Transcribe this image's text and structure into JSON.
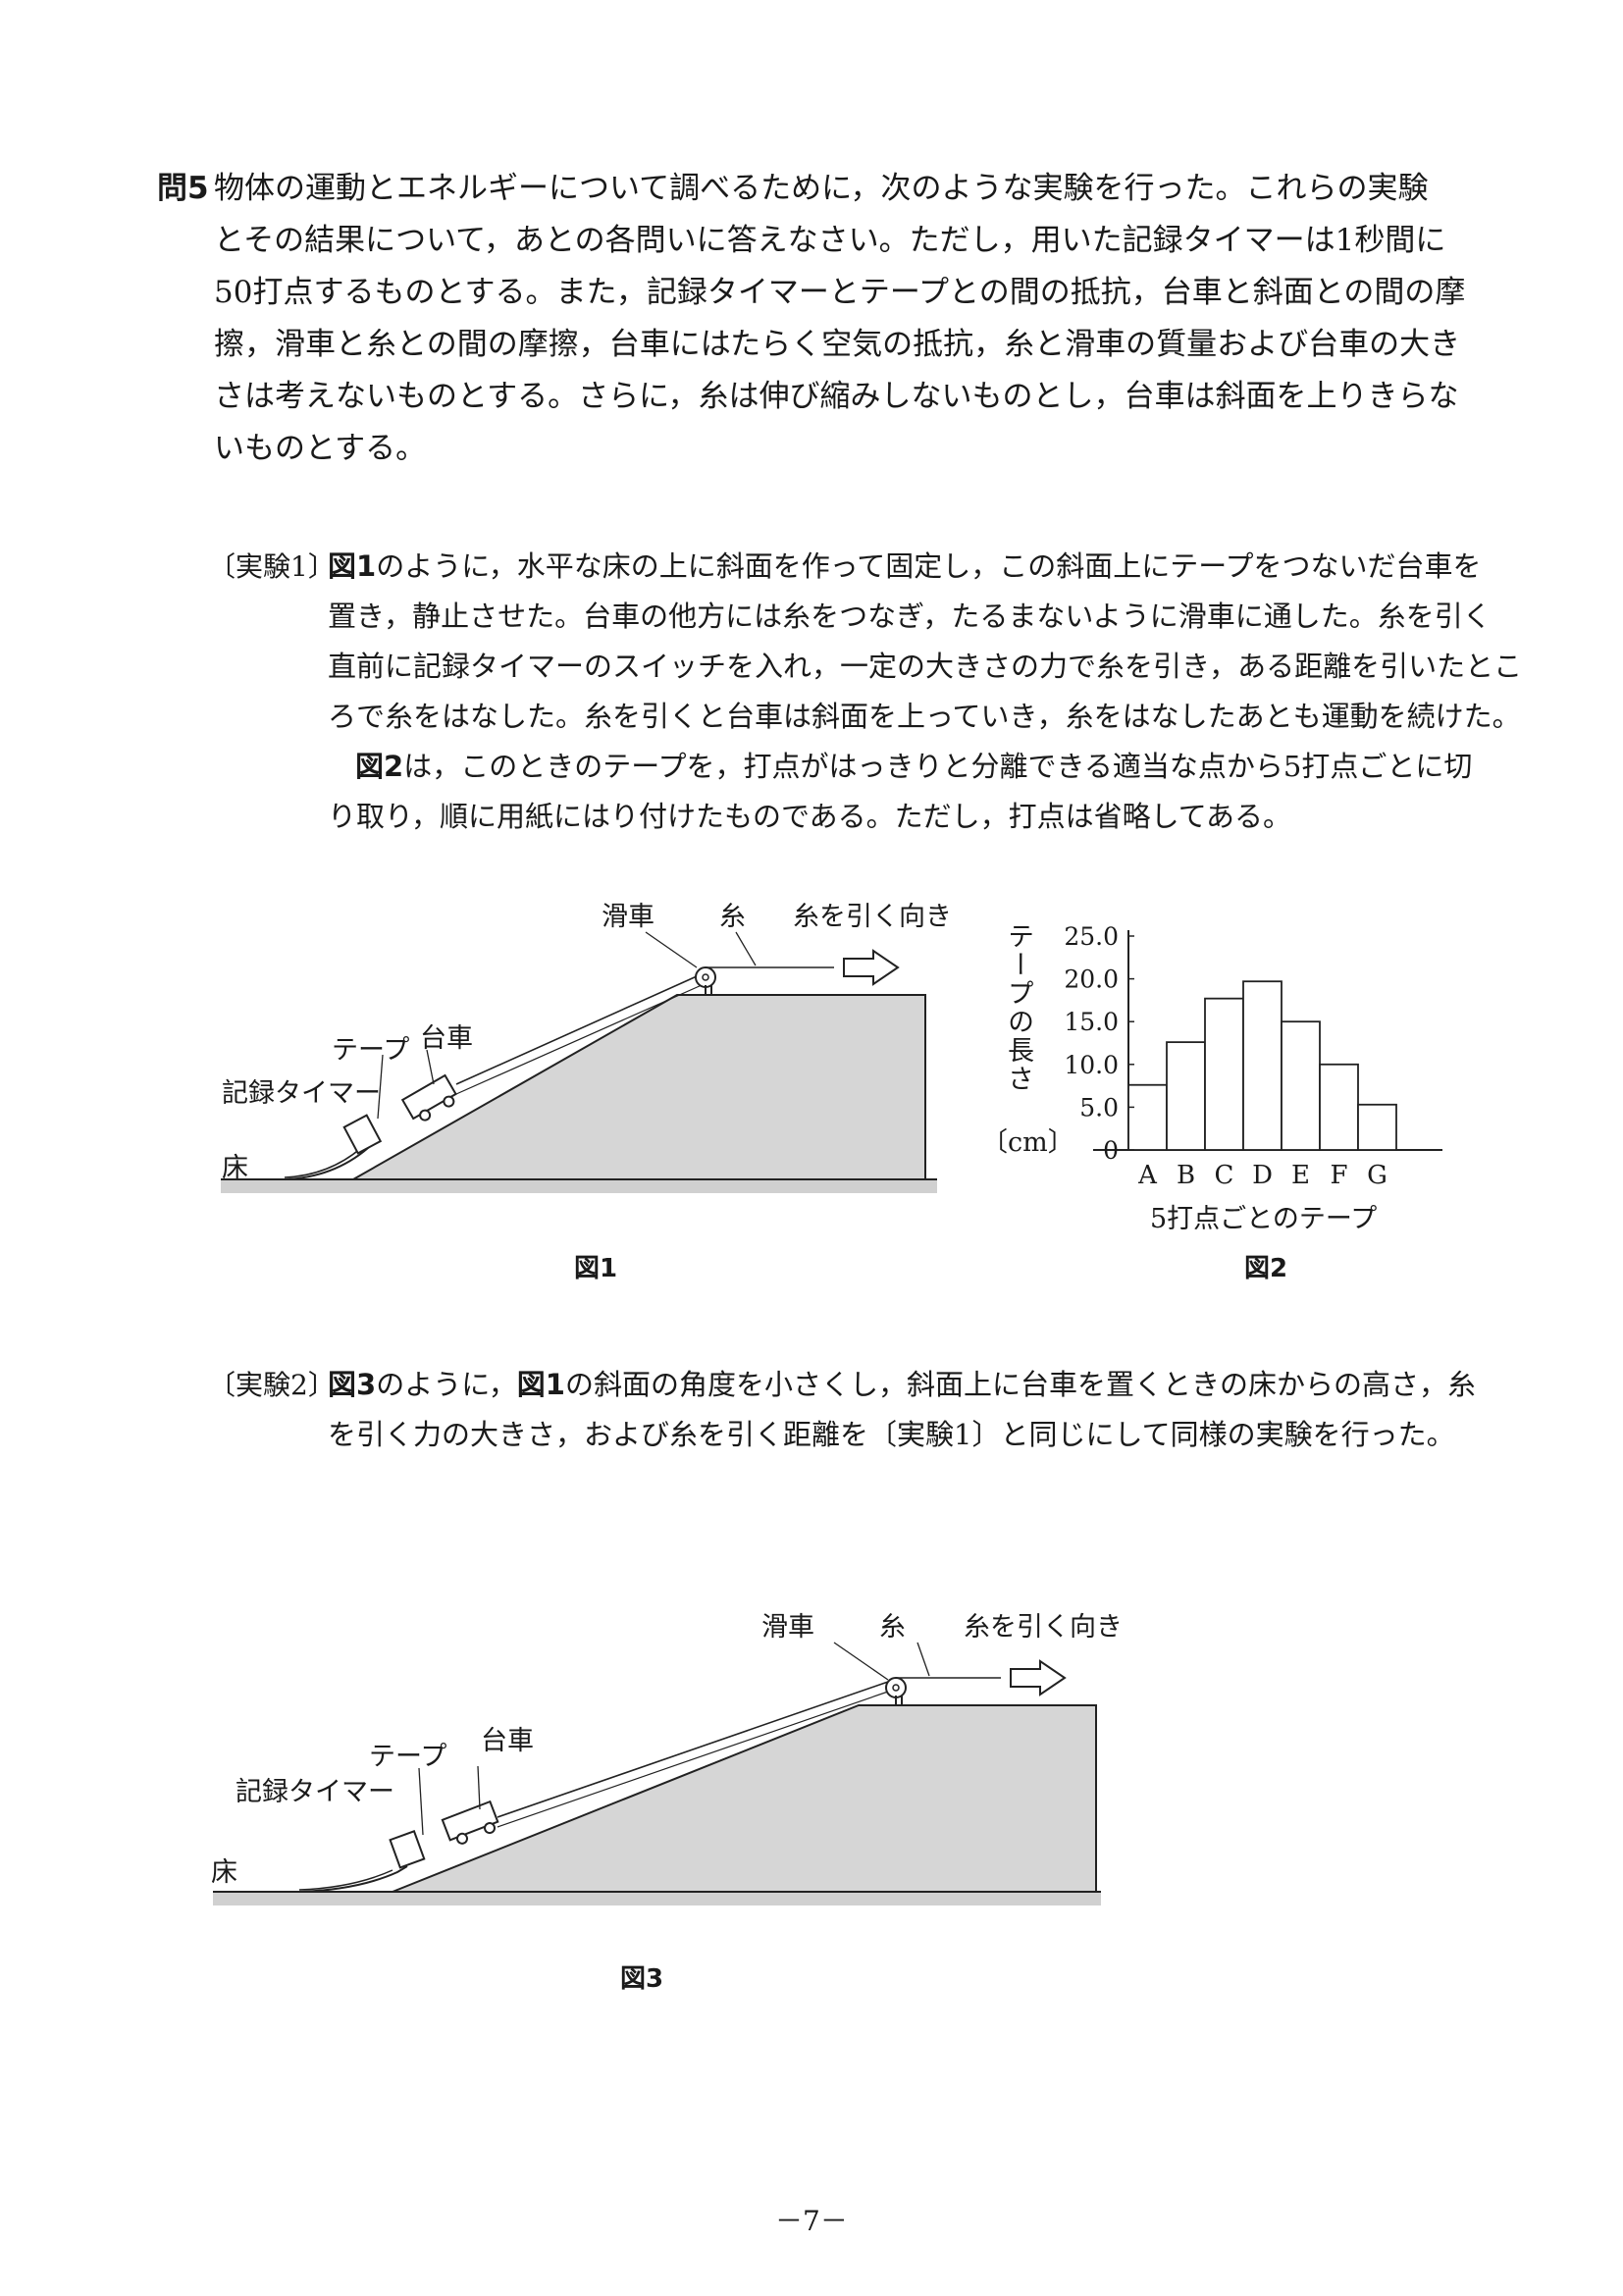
{
  "question": {
    "number": "問5",
    "lines": [
      "物体の運動とエネルギーについて調べるために，次のような実験を行った。これらの実験",
      "とその結果について，あとの各問いに答えなさい。ただし，用いた記録タイマーは1秒間に",
      "50打点するものとする。また，記録タイマーとテープとの間の抵抗，台車と斜面との間の摩",
      "擦，滑車と糸との間の摩擦，台車にはたらく空気の抵抗，糸と滑車の質量および台車の大き",
      "さは考えないものとする。さらに，糸は伸び縮みしないものとし，台車は斜面を上りきらな",
      "いものとする。"
    ]
  },
  "experiment1": {
    "label": "〔実験1〕",
    "lines": [
      {
        "ref": "図1",
        "text": "のように，水平な床の上に斜面を作って固定し，この斜面上にテープをつないだ台車を"
      },
      {
        "ref": "",
        "text": "置き，静止させた。台車の他方には糸をつなぎ，たるまないように滑車に通した。糸を引く"
      },
      {
        "ref": "",
        "text": "直前に記録タイマーのスイッチを入れ，一定の大きさの力で糸を引き，ある距離を引いたとこ"
      },
      {
        "ref": "",
        "text": "ろで糸をはなした。糸を引くと台車は斜面を上っていき，糸をはなしたあとも運動を続けた。"
      },
      {
        "ref": "図2",
        "text": "は，このときのテープを，打点がはっきりと分離できる適当な点から5打点ごとに切"
      },
      {
        "ref": "",
        "text": "り取り，順に用紙にはり付けたものである。ただし，打点は省略してある。"
      }
    ]
  },
  "figure1": {
    "caption": "図1",
    "labels": {
      "pulley": "滑車",
      "string": "糸",
      "pull_direction": "糸を引く向き",
      "tape": "テープ",
      "cart": "台車",
      "timer": "記録タイマー",
      "floor": "床"
    }
  },
  "figure2": {
    "caption": "図2",
    "ylabel": "テープの長さ",
    "yunit": "〔cm〕",
    "xlabel": "5打点ごとのテープ"
  },
  "chart_data": {
    "type": "bar",
    "title": "",
    "categories": [
      "A",
      "B",
      "C",
      "D",
      "E",
      "F",
      "G"
    ],
    "values": [
      7.6,
      12.6,
      17.7,
      19.7,
      15.0,
      10.0,
      5.3
    ],
    "yticks": [
      "25.0",
      "20.0",
      "15.0",
      "10.0",
      "5.0",
      "0"
    ],
    "ylim": [
      0,
      25
    ],
    "xlabel": "5打点ごとのテープ",
    "ylabel": "テープの長さ",
    "grid": false
  },
  "experiment2": {
    "label": "〔実験2〕",
    "lines": [
      {
        "ref": "図3",
        "text": "のように，",
        "ref2": "図1",
        "text2": "の斜面の角度を小さくし，斜面上に台車を置くときの床からの高さ，糸"
      },
      {
        "ref": "",
        "text": "を引く力の大きさ，および糸を引く距離を〔実験1〕と同じにして同様の実験を行った。"
      }
    ]
  },
  "figure3": {
    "caption": "図3",
    "labels": {
      "pulley": "滑車",
      "string": "糸",
      "pull_direction": "糸を引く向き",
      "tape": "テープ",
      "cart": "台車",
      "timer": "記録タイマー",
      "floor": "床"
    }
  },
  "page_number": "－7－"
}
